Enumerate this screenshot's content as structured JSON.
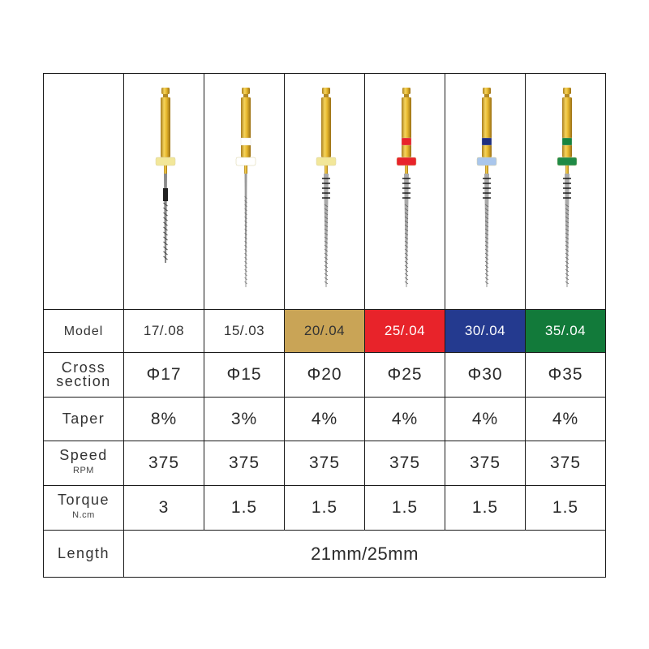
{
  "header_labels": {
    "model": "Model",
    "cross_line1": "Cross",
    "cross_line2": "section",
    "taper": "Taper",
    "speed": "Speed",
    "speed_unit": "RPM",
    "torque": "Torque",
    "torque_unit": "N.cm",
    "length": "Length"
  },
  "files": [
    {
      "model": "17/.08",
      "cross": "Φ17",
      "taper": "8%",
      "speed": "375",
      "torque": "3",
      "model_bg": "#ffffff",
      "model_fg": "#333333",
      "band_color": "none",
      "collar_color": "#f2e79a",
      "tip": "short-black"
    },
    {
      "model": "15/.03",
      "cross": "Φ15",
      "taper": "3%",
      "speed": "375",
      "torque": "1.5",
      "model_bg": "#ffffff",
      "model_fg": "#333333",
      "band_color": "#ffffff",
      "collar_color": "#ffffff",
      "tip": "thin"
    },
    {
      "model": "20/.04",
      "cross": "Φ20",
      "taper": "4%",
      "speed": "375",
      "torque": "1.5",
      "model_bg": "#c9a456",
      "model_fg": "#333333",
      "band_color": "none",
      "collar_color": "#f2e79a",
      "tip": "marked"
    },
    {
      "model": "25/.04",
      "cross": "Φ25",
      "taper": "4%",
      "speed": "375",
      "torque": "1.5",
      "model_bg": "#e8232a",
      "model_fg": "#ffffff",
      "band_color": "#e8232a",
      "collar_color": "#e8232a",
      "tip": "marked"
    },
    {
      "model": "30/.04",
      "cross": "Φ30",
      "taper": "4%",
      "speed": "375",
      "torque": "1.5",
      "model_bg": "#243a8f",
      "model_fg": "#ffffff",
      "band_color": "#1f2f80",
      "collar_color": "#a9c6ec",
      "tip": "marked"
    },
    {
      "model": "35/.04",
      "cross": "Φ35",
      "taper": "4%",
      "speed": "375",
      "torque": "1.5",
      "model_bg": "#127a3a",
      "model_fg": "#ffffff",
      "band_color": "#17843e",
      "collar_color": "#1f8a46",
      "tip": "marked"
    }
  ],
  "length_value": "21mm/25mm"
}
